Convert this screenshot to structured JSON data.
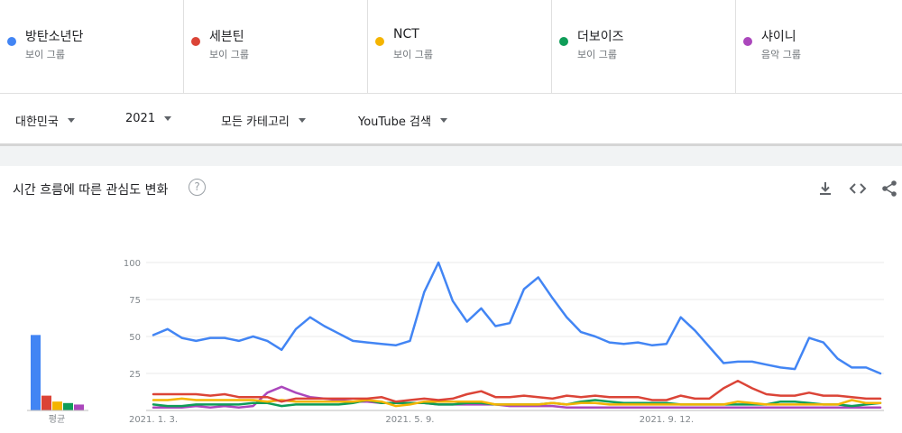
{
  "terms": [
    {
      "name": "방탄소년단",
      "sub": "보이 그룹",
      "color": "#4285f4"
    },
    {
      "name": "세븐틴",
      "sub": "보이 그룹",
      "color": "#db4437"
    },
    {
      "name": "NCT",
      "sub": "보이 그룹",
      "color": "#f4b400"
    },
    {
      "name": "더보이즈",
      "sub": "보이 그룹",
      "color": "#0f9d58"
    },
    {
      "name": "샤이니",
      "sub": "음악 그룹",
      "color": "#ab47bc"
    }
  ],
  "filters": {
    "region": "대한민국",
    "period": "2021",
    "category": "모든 카테고리",
    "search_type": "YouTube 검색"
  },
  "chart_section": {
    "title": "시간 흐름에 따른 관심도 변화",
    "help_glyph": "?",
    "avg_label": "평균"
  },
  "icons": {
    "help": "help-circle-icon",
    "download": "download-icon",
    "embed": "code-embed-icon",
    "share": "share-icon"
  },
  "chart_data": {
    "type": "line",
    "ylim": [
      0,
      100
    ],
    "yticks": [
      "100",
      "75",
      "50",
      "25"
    ],
    "xtick_labels": [
      {
        "label": "2021. 1. 3.",
        "index": 0
      },
      {
        "label": "2021. 5. 9.",
        "index": 18
      },
      {
        "label": "2021. 9. 12.",
        "index": 36
      }
    ],
    "x": [
      "2021-01-03",
      "2021-01-10",
      "2021-01-17",
      "2021-01-24",
      "2021-01-31",
      "2021-02-07",
      "2021-02-14",
      "2021-02-21",
      "2021-02-28",
      "2021-03-07",
      "2021-03-14",
      "2021-03-21",
      "2021-03-28",
      "2021-04-04",
      "2021-04-11",
      "2021-04-18",
      "2021-04-25",
      "2021-05-02",
      "2021-05-09",
      "2021-05-16",
      "2021-05-23",
      "2021-05-30",
      "2021-06-06",
      "2021-06-13",
      "2021-06-20",
      "2021-06-27",
      "2021-07-04",
      "2021-07-11",
      "2021-07-18",
      "2021-07-25",
      "2021-08-01",
      "2021-08-08",
      "2021-08-15",
      "2021-08-22",
      "2021-08-29",
      "2021-09-05",
      "2021-09-12",
      "2021-09-19",
      "2021-09-26",
      "2021-10-03",
      "2021-10-10",
      "2021-10-17",
      "2021-10-24",
      "2021-10-31",
      "2021-11-07",
      "2021-11-14",
      "2021-11-21",
      "2021-11-28",
      "2021-12-05",
      "2021-12-12",
      "2021-12-19",
      "2021-12-26"
    ],
    "series": [
      {
        "name": "방탄소년단",
        "color": "#4285f4",
        "average": 51,
        "values": [
          51,
          55,
          49,
          47,
          49,
          49,
          47,
          50,
          47,
          41,
          55,
          63,
          57,
          52,
          47,
          46,
          45,
          44,
          47,
          80,
          100,
          74,
          60,
          69,
          57,
          59,
          82,
          90,
          76,
          63,
          53,
          50,
          46,
          45,
          46,
          44,
          45,
          63,
          54,
          43,
          32,
          33,
          33,
          31,
          29,
          28,
          49,
          46,
          35,
          29,
          29,
          25
        ]
      },
      {
        "name": "세븐틴",
        "color": "#db4437",
        "average": 10,
        "values": [
          11,
          11,
          11,
          11,
          10,
          11,
          9,
          9,
          9,
          6,
          8,
          8,
          8,
          8,
          8,
          8,
          9,
          6,
          7,
          8,
          7,
          8,
          11,
          13,
          9,
          9,
          10,
          9,
          8,
          10,
          9,
          10,
          9,
          9,
          9,
          7,
          7,
          10,
          8,
          8,
          15,
          20,
          15,
          11,
          10,
          10,
          12,
          10,
          10,
          9,
          8,
          8
        ]
      },
      {
        "name": "NCT",
        "color": "#f4b400",
        "average": 6,
        "values": [
          7,
          7,
          8,
          7,
          7,
          7,
          7,
          7,
          6,
          7,
          6,
          6,
          6,
          6,
          6,
          7,
          6,
          3,
          4,
          6,
          6,
          6,
          6,
          6,
          4,
          4,
          4,
          4,
          5,
          4,
          5,
          5,
          4,
          4,
          4,
          4,
          4,
          4,
          4,
          4,
          4,
          6,
          5,
          4,
          4,
          4,
          4,
          4,
          4,
          7,
          5,
          5
        ]
      },
      {
        "name": "더보이즈",
        "color": "#0f9d58",
        "average": 5,
        "values": [
          4,
          3,
          3,
          4,
          4,
          4,
          4,
          5,
          5,
          3,
          4,
          4,
          4,
          4,
          5,
          7,
          5,
          5,
          5,
          5,
          4,
          4,
          5,
          5,
          4,
          4,
          4,
          4,
          5,
          4,
          6,
          7,
          6,
          5,
          5,
          5,
          5,
          4,
          4,
          4,
          4,
          4,
          4,
          4,
          6,
          6,
          5,
          4,
          4,
          3,
          4,
          5
        ]
      },
      {
        "name": "샤이니",
        "color": "#ab47bc",
        "average": 4,
        "values": [
          2,
          2,
          2,
          3,
          2,
          3,
          2,
          3,
          12,
          16,
          12,
          9,
          8,
          7,
          6,
          6,
          5,
          5,
          5,
          5,
          4,
          4,
          4,
          4,
          4,
          3,
          3,
          3,
          3,
          2,
          2,
          2,
          2,
          2,
          2,
          2,
          2,
          2,
          2,
          2,
          2,
          2,
          2,
          2,
          2,
          2,
          2,
          2,
          2,
          2,
          2,
          2
        ]
      }
    ]
  }
}
